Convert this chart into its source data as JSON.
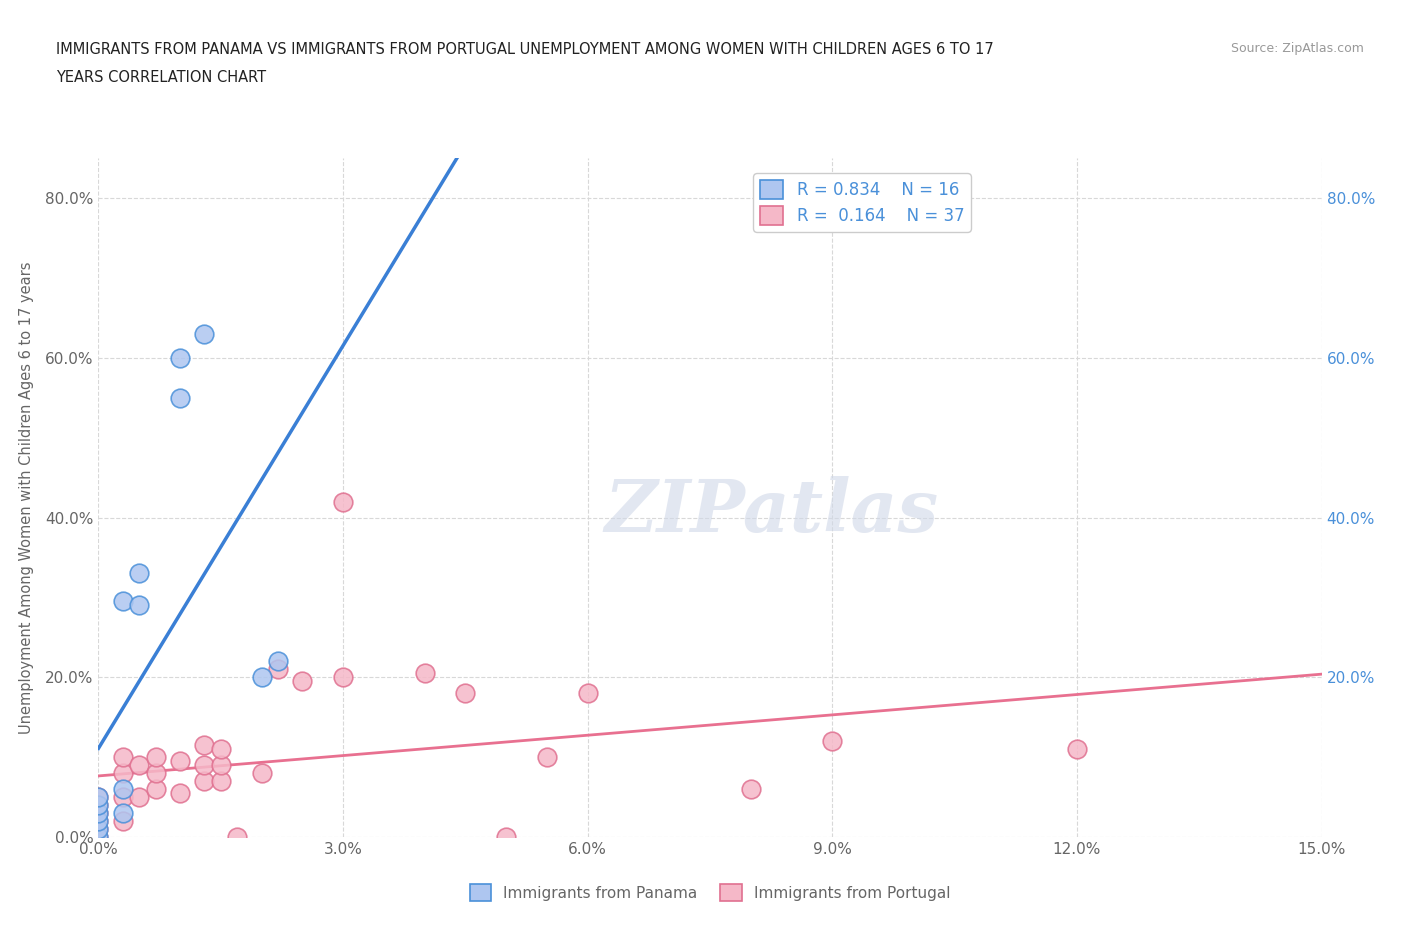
{
  "title_line1": "IMMIGRANTS FROM PANAMA VS IMMIGRANTS FROM PORTUGAL UNEMPLOYMENT AMONG WOMEN WITH CHILDREN AGES 6 TO 17",
  "title_line2": "YEARS CORRELATION CHART",
  "source": "Source: ZipAtlas.com",
  "ylabel": "Unemployment Among Women with Children Ages 6 to 17 years",
  "xlim": [
    0.0,
    0.15
  ],
  "ylim": [
    0.0,
    0.85
  ],
  "xticklabels": [
    "0.0%",
    "3.0%",
    "6.0%",
    "9.0%",
    "12.0%",
    "15.0%"
  ],
  "xticks": [
    0.0,
    0.03,
    0.06,
    0.09,
    0.12,
    0.15
  ],
  "yticks": [
    0.0,
    0.2,
    0.4,
    0.6,
    0.8
  ],
  "yticklabels_left": [
    "0.0%",
    "20.0%",
    "40.0%",
    "60.0%",
    "80.0%"
  ],
  "yticklabels_right": [
    "",
    "20.0%",
    "40.0%",
    "60.0%",
    "80.0%"
  ],
  "panama_fill": "#aec6f0",
  "panama_edge": "#4a90d9",
  "portugal_fill": "#f5b8c8",
  "portugal_edge": "#e07090",
  "line_panama": "#3a7fd5",
  "line_portugal": "#e87090",
  "legend_R1": "R = 0.834",
  "legend_N1": "N = 16",
  "legend_R2": "R = 0.164",
  "legend_N2": "N = 37",
  "watermark": "ZIPatlas",
  "panama_x": [
    0.0,
    0.0,
    0.0,
    0.0,
    0.0,
    0.0,
    0.003,
    0.003,
    0.003,
    0.005,
    0.005,
    0.01,
    0.01,
    0.013,
    0.02,
    0.022
  ],
  "panama_y": [
    0.0,
    0.01,
    0.02,
    0.03,
    0.04,
    0.05,
    0.03,
    0.06,
    0.295,
    0.29,
    0.33,
    0.55,
    0.6,
    0.63,
    0.2,
    0.22
  ],
  "portugal_x": [
    0.0,
    0.0,
    0.0,
    0.0,
    0.0,
    0.0,
    0.003,
    0.003,
    0.003,
    0.003,
    0.005,
    0.005,
    0.007,
    0.007,
    0.007,
    0.01,
    0.01,
    0.013,
    0.013,
    0.013,
    0.015,
    0.015,
    0.015,
    0.017,
    0.02,
    0.022,
    0.025,
    0.03,
    0.03,
    0.04,
    0.045,
    0.05,
    0.055,
    0.06,
    0.08,
    0.09,
    0.12
  ],
  "portugal_y": [
    0.0,
    0.01,
    0.02,
    0.03,
    0.04,
    0.05,
    0.02,
    0.05,
    0.08,
    0.1,
    0.05,
    0.09,
    0.06,
    0.08,
    0.1,
    0.055,
    0.095,
    0.07,
    0.09,
    0.115,
    0.07,
    0.09,
    0.11,
    0.0,
    0.08,
    0.21,
    0.195,
    0.2,
    0.42,
    0.205,
    0.18,
    0.0,
    0.1,
    0.18,
    0.06,
    0.12,
    0.11
  ],
  "bg_color": "#ffffff",
  "grid_color": "#d8d8d8",
  "tick_color": "#666666",
  "right_tick_color": "#4a90d9"
}
